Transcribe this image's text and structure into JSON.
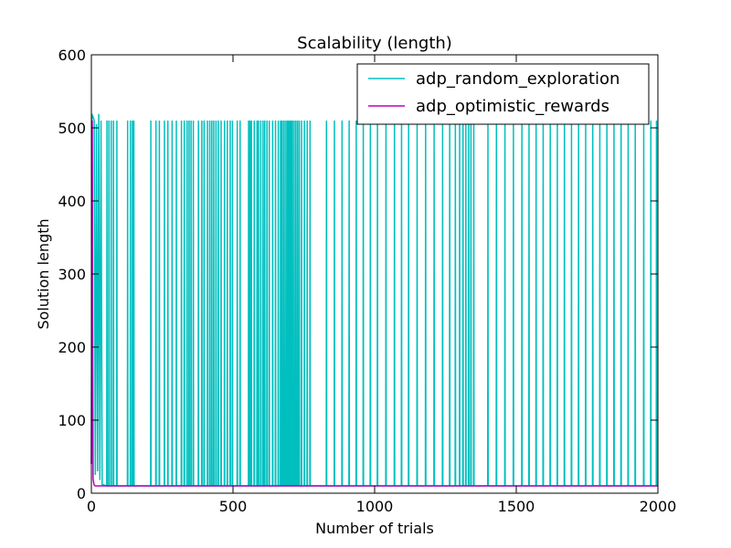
{
  "chart_data": {
    "type": "line",
    "title": "Scalability (length)",
    "xlabel": "Number of trials",
    "ylabel": "Solution length",
    "xlim": [
      0,
      2000
    ],
    "ylim": [
      0,
      600
    ],
    "xticks": [
      0,
      500,
      1000,
      1500,
      2000
    ],
    "yticks": [
      0,
      100,
      200,
      300,
      400,
      500,
      600
    ],
    "grid": false,
    "legend_position": "top-right",
    "series": [
      {
        "name": "adp_random_exploration",
        "color": "#00bfbf",
        "high_value": 510,
        "low_value": 10,
        "early_points": [
          [
            0,
            40
          ],
          [
            2,
            519
          ],
          [
            6,
            515
          ],
          [
            10,
            510
          ],
          [
            14,
            25
          ],
          [
            18,
            505
          ],
          [
            22,
            30
          ],
          [
            26,
            519
          ],
          [
            30,
            18
          ],
          [
            34,
            510
          ],
          [
            38,
            12
          ]
        ],
        "spike_trials": [
          55,
          62,
          70,
          78,
          90,
          128,
          138,
          145,
          150,
          210,
          228,
          240,
          258,
          270,
          285,
          300,
          318,
          328,
          338,
          345,
          352,
          360,
          378,
          390,
          398,
          410,
          418,
          425,
          432,
          440,
          448,
          458,
          470,
          480,
          490,
          498,
          515,
          525,
          555,
          560,
          565,
          575,
          585,
          590,
          598,
          606,
          612,
          620,
          628,
          640,
          650,
          660,
          668,
          672,
          678,
          684,
          690,
          694,
          698,
          702,
          706,
          710,
          716,
          722,
          728,
          734,
          742,
          752,
          762,
          772,
          830,
          858,
          885,
          910,
          935,
          960,
          985,
          1010,
          1040,
          1070,
          1095,
          1120,
          1150,
          1180,
          1210,
          1240,
          1265,
          1285,
          1300,
          1312,
          1322,
          1332,
          1340,
          1350,
          1400,
          1430,
          1460,
          1490,
          1520,
          1545,
          1570,
          1595,
          1620,
          1645,
          1670,
          1695,
          1720,
          1745,
          1770,
          1795,
          1820,
          1845,
          1870,
          1895,
          1920,
          1950,
          1975,
          1995
        ]
      },
      {
        "name": "adp_optimistic_rewards",
        "color": "#bf00bf",
        "points": [
          [
            0,
            40
          ],
          [
            3,
            510
          ],
          [
            6,
            20
          ],
          [
            9,
            12
          ],
          [
            13,
            10
          ],
          [
            100,
            10
          ],
          [
            500,
            10
          ],
          [
            1000,
            10
          ],
          [
            1500,
            10
          ],
          [
            2000,
            10
          ]
        ]
      }
    ]
  }
}
